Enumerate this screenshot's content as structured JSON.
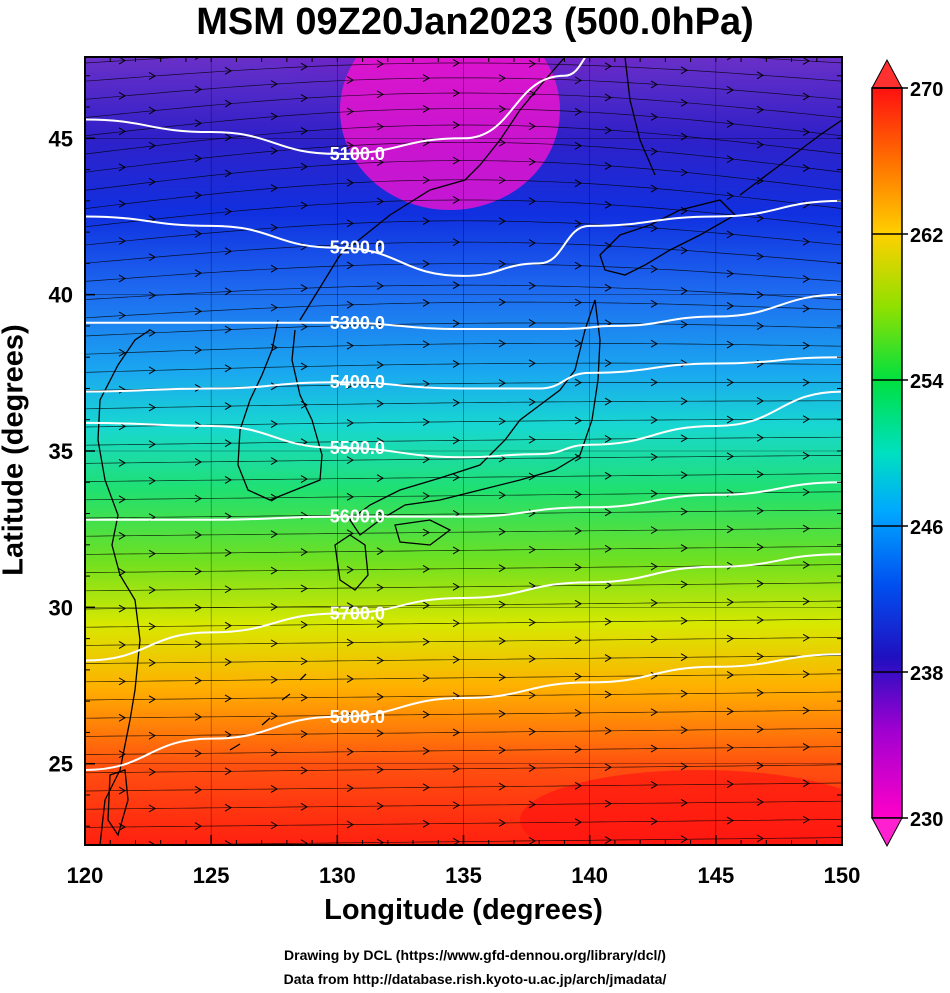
{
  "title": "MSM 09Z20Jan2023 (500.0hPa)",
  "chart_data": {
    "type": "heatmap",
    "x_label": "Longitude (degrees)",
    "y_label": "Latitude  (degrees)",
    "x_range": [
      120,
      150
    ],
    "y_range": [
      22.4,
      47.6
    ],
    "x_ticks": [
      "120",
      "125",
      "130",
      "135",
      "140",
      "145",
      "150"
    ],
    "y_ticks": [
      "25",
      "30",
      "35",
      "40",
      "45"
    ],
    "colorbar": {
      "range": [
        230,
        270
      ],
      "ticks": [
        "230",
        "238",
        "246",
        "254",
        "262",
        "270"
      ],
      "colors": [
        "#ff00c8",
        "#8000d0",
        "#0010d0",
        "#0060ff",
        "#00c8ff",
        "#00e060",
        "#60e000",
        "#f0e000",
        "#ff9000",
        "#ff1010"
      ]
    },
    "contours": [
      {
        "label": "5100.0",
        "points": [
          [
            120,
            45.6
          ],
          [
            125,
            45.2
          ],
          [
            130,
            44.5
          ],
          [
            135,
            45.0
          ],
          [
            139,
            47.0
          ],
          [
            140.5,
            48.0
          ]
        ]
      },
      {
        "label": "5200.0",
        "points": [
          [
            120,
            42.5
          ],
          [
            125,
            42.2
          ],
          [
            130,
            41.5
          ],
          [
            135,
            40.6
          ],
          [
            138,
            41.0
          ],
          [
            140,
            42.2
          ],
          [
            145,
            42.5
          ],
          [
            150,
            43.0
          ]
        ]
      },
      {
        "label": "5300.0",
        "points": [
          [
            120,
            39.1
          ],
          [
            125,
            39.1
          ],
          [
            130,
            39.1
          ],
          [
            135,
            38.9
          ],
          [
            139,
            38.9
          ],
          [
            141,
            39.0
          ],
          [
            145,
            39.3
          ],
          [
            150,
            40.0
          ]
        ]
      },
      {
        "label": "5400.0",
        "points": [
          [
            120,
            36.9
          ],
          [
            125,
            37.0
          ],
          [
            130,
            37.2
          ],
          [
            135,
            37.0
          ],
          [
            138,
            37.0
          ],
          [
            140,
            37.5
          ],
          [
            145,
            37.8
          ],
          [
            150,
            38.0
          ]
        ]
      },
      {
        "label": "5500.0",
        "points": [
          [
            120,
            35.9
          ],
          [
            125,
            35.8
          ],
          [
            130,
            35.1
          ],
          [
            135,
            34.8
          ],
          [
            138,
            34.9
          ],
          [
            140,
            35.2
          ],
          [
            145,
            35.8
          ],
          [
            150,
            36.9
          ]
        ]
      },
      {
        "label": "5600.0",
        "points": [
          [
            120,
            32.8
          ],
          [
            125,
            32.8
          ],
          [
            130,
            32.9
          ],
          [
            135,
            32.9
          ],
          [
            140,
            33.2
          ],
          [
            145,
            33.6
          ],
          [
            150,
            34.0
          ]
        ]
      },
      {
        "label": "5700.0",
        "points": [
          [
            120,
            28.3
          ],
          [
            125,
            29.2
          ],
          [
            130,
            29.8
          ],
          [
            135,
            30.3
          ],
          [
            140,
            30.8
          ],
          [
            145,
            31.3
          ],
          [
            150,
            31.7
          ]
        ]
      },
      {
        "label": "5800.0",
        "points": [
          [
            120,
            24.8
          ],
          [
            125,
            25.8
          ],
          [
            130,
            26.5
          ],
          [
            135,
            27.1
          ],
          [
            140,
            27.6
          ],
          [
            145,
            28.1
          ],
          [
            150,
            28.5
          ]
        ]
      }
    ]
  },
  "credits": {
    "line1": "Drawing by DCL (https://www.gfd-dennou.org/library/dcl/)",
    "line2": "Data from http://database.rish.kyoto-u.ac.jp/arch/jmadata/"
  }
}
